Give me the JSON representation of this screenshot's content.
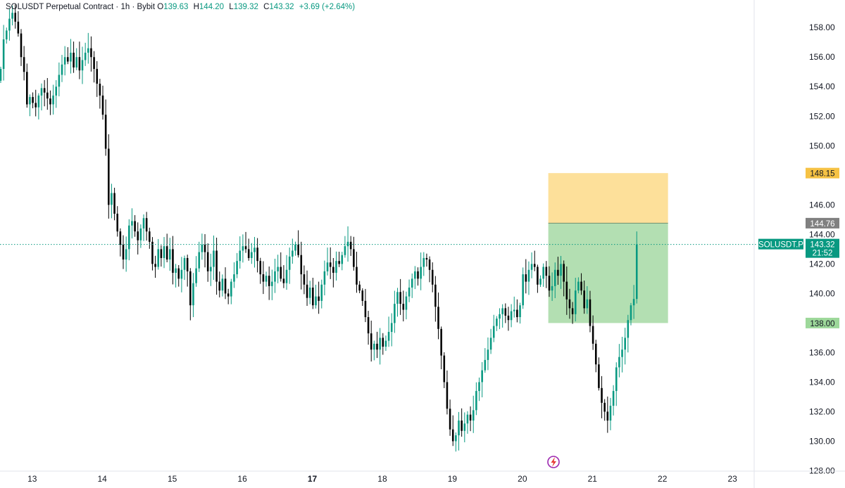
{
  "legend": {
    "symbol": "SOLUSDT Perpetual Contract",
    "interval": "1h",
    "exchange": "Bybit",
    "o_label": "O",
    "o": "139.63",
    "h_label": "H",
    "h": "144.20",
    "l_label": "L",
    "l": "139.32",
    "c_label": "C",
    "c": "143.32",
    "change": "+3.69 (+2.64%)"
  },
  "colors": {
    "up": "#089981",
    "down": "#000000",
    "target_zone": "#b3dfb2",
    "stop_zone": "#fde09a",
    "target_tag": "#9dd89a",
    "stop_tag": "#f6c244",
    "entry_tag": "#808080",
    "last_price_tag": "#089981",
    "last_price_line": "#089981",
    "flash_icon": "#9c27b0"
  },
  "chart_data": {
    "type": "candlestick",
    "ylim": [
      127.5,
      159.2
    ],
    "y_ticks": [
      "158.00",
      "156.00",
      "154.00",
      "152.00",
      "150.00",
      "148.00",
      "146.00",
      "144.00",
      "142.00",
      "140.00",
      "138.00",
      "136.00",
      "134.00",
      "132.00",
      "130.00",
      "128.00"
    ],
    "x_ticks": [
      {
        "label": "13",
        "day": 13,
        "bold": false
      },
      {
        "label": "14",
        "day": 14,
        "bold": false
      },
      {
        "label": "15",
        "day": 15,
        "bold": false
      },
      {
        "label": "16",
        "day": 16,
        "bold": false
      },
      {
        "label": "17",
        "day": 17,
        "bold": true
      },
      {
        "label": "18",
        "day": 18,
        "bold": false
      },
      {
        "label": "19",
        "day": 19,
        "bold": false
      },
      {
        "label": "20",
        "day": 20,
        "bold": false
      },
      {
        "label": "21",
        "day": 21,
        "bold": false
      },
      {
        "label": "22",
        "day": 22,
        "bold": false
      },
      {
        "label": "23",
        "day": 23,
        "bold": false
      }
    ],
    "x_range_days": [
      12.54,
      23.3
    ],
    "start_day": 12.55,
    "bar_hours": 1,
    "closes": [
      155.2,
      157.2,
      157.8,
      158.6,
      159.0,
      158.4,
      157.6,
      156.0,
      155.0,
      152.8,
      153.3,
      152.9,
      152.6,
      153.4,
      153.9,
      153.6,
      153.2,
      152.8,
      153.4,
      154.0,
      154.8,
      155.5,
      156.0,
      155.7,
      156.3,
      155.3,
      156.0,
      155.1,
      155.8,
      156.3,
      156.6,
      156.0,
      155.2,
      154.2,
      153.4,
      152.1,
      149.8,
      146.0,
      146.8,
      145.4,
      144.2,
      143.3,
      142.3,
      143.0,
      144.6,
      144.9,
      144.2,
      143.6,
      144.4,
      145.1,
      144.2,
      143.5,
      142.0,
      141.8,
      143.0,
      142.4,
      143.2,
      142.3,
      143.0,
      141.4,
      141.7,
      141.0,
      141.6,
      142.4,
      141.5,
      139.2,
      140.7,
      141.7,
      142.8,
      143.3,
      142.8,
      141.5,
      141.8,
      142.9,
      140.8,
      140.2,
      141.0,
      140.0,
      139.8,
      140.8,
      141.3,
      142.2,
      142.9,
      143.2,
      143.0,
      142.4,
      142.8,
      143.1,
      142.2,
      141.3,
      140.8,
      141.2,
      140.5,
      140.8,
      141.5,
      141.8,
      141.0,
      140.7,
      141.6,
      142.5,
      142.9,
      143.3,
      142.6,
      141.3,
      140.6,
      139.7,
      140.4,
      139.2,
      139.8,
      139.5,
      140.6,
      141.5,
      142.1,
      141.8,
      141.4,
      142.2,
      142.0,
      142.6,
      143.2,
      143.5,
      143.0,
      141.8,
      140.6,
      140.2,
      139.5,
      138.4,
      137.3,
      136.2,
      136.6,
      136.2,
      137.0,
      136.4,
      136.8,
      137.4,
      138.0,
      139.3,
      140.1,
      139.3,
      138.9,
      139.8,
      140.4,
      141.0,
      141.5,
      141.0,
      141.8,
      142.4,
      142.3,
      141.6,
      140.6,
      139.1,
      137.6,
      135.8,
      134.0,
      132.2,
      130.8,
      130.0,
      130.4,
      131.4,
      130.7,
      131.2,
      131.8,
      131.4,
      132.1,
      133.4,
      134.0,
      134.8,
      135.5,
      136.2,
      137.0,
      137.8,
      138.3,
      138.6,
      139.0,
      138.5,
      138.2,
      138.8,
      138.9,
      138.4,
      139.2,
      141.3,
      140.8,
      141.6,
      142.0,
      141.8,
      140.6,
      141.0,
      141.8,
      141.2,
      140.2,
      140.5,
      141.6,
      141.2,
      142.0,
      140.8,
      139.6,
      139.0,
      138.6,
      140.2,
      140.8,
      140.2,
      139.0,
      139.6,
      137.8,
      136.6,
      135.2,
      133.6,
      132.6,
      132.0,
      131.4,
      132.4,
      133.4,
      135.0,
      135.7,
      136.2,
      137.0,
      138.2,
      139.2,
      139.63,
      143.32
    ],
    "last_bar": {
      "open": 139.63,
      "high": 144.2,
      "low": 139.32,
      "close": 143.32
    },
    "position": {
      "day_start": 20.37,
      "day_end": 22.08,
      "stop": 148.15,
      "entry": 144.76,
      "target": 138.0
    },
    "price_tags": [
      {
        "value": 148.15,
        "label": "148.15",
        "kind": "stop"
      },
      {
        "value": 144.76,
        "label": "144.76",
        "kind": "entry"
      },
      {
        "value": 138.0,
        "label": "138.00",
        "kind": "target"
      }
    ],
    "last_price": {
      "value": 143.32,
      "label": "143.32",
      "countdown": "21:52",
      "symbol": "SOLUSDT.P"
    }
  }
}
